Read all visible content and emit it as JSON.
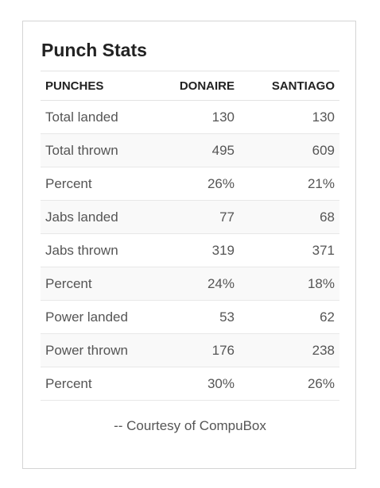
{
  "card": {
    "title": "Punch Stats"
  },
  "table": {
    "headers": [
      "PUNCHES",
      "DONAIRE",
      "SANTIAGO"
    ],
    "rows": [
      [
        "Total landed",
        "130",
        "130"
      ],
      [
        "Total thrown",
        "495",
        "609"
      ],
      [
        "Percent",
        "26%",
        "21%"
      ],
      [
        "Jabs landed",
        "77",
        "68"
      ],
      [
        "Jabs thrown",
        "319",
        "371"
      ],
      [
        "Percent",
        "24%",
        "18%"
      ],
      [
        "Power landed",
        "53",
        "62"
      ],
      [
        "Power thrown",
        "176",
        "238"
      ],
      [
        "Percent",
        "30%",
        "26%"
      ]
    ]
  },
  "footer": {
    "courtesy": "-- Courtesy of CompuBox"
  }
}
